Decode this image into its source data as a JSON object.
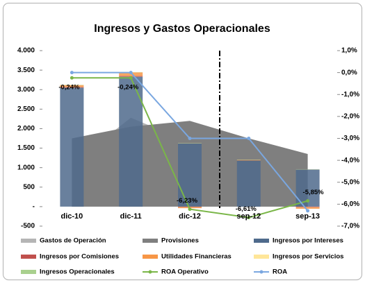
{
  "chart_data": {
    "type": "combo",
    "title": "Ingresos y Gastos Operacionales",
    "categories": [
      "dic-10",
      "dic-11",
      "dic-12",
      "sep-12",
      "sep-13"
    ],
    "ylim": [
      -500,
      4000
    ],
    "yticks": [
      {
        "value": 4000,
        "label": "4.000"
      },
      {
        "value": 3500,
        "label": "3.500"
      },
      {
        "value": 3000,
        "label": "3.000"
      },
      {
        "value": 2500,
        "label": "2.500"
      },
      {
        "value": 2000,
        "label": "2.000"
      },
      {
        "value": 1500,
        "label": "1.500"
      },
      {
        "value": 1000,
        "label": "1.000"
      },
      500,
      {
        "value": 0,
        "label": "-"
      },
      -500
    ],
    "y2lim": [
      -7,
      1
    ],
    "y2ticks": [
      {
        "value": 1,
        "label": "1,0%"
      },
      {
        "value": 0,
        "label": "0,0%"
      },
      {
        "value": -1,
        "label": "-1,0%"
      },
      {
        "value": -2,
        "label": "-2,0%"
      },
      {
        "value": -3,
        "label": "-3,0%"
      },
      {
        "value": -4,
        "label": "-4,0%"
      },
      {
        "value": -5,
        "label": "-5,0%"
      },
      {
        "value": -6,
        "label": "-6,0%"
      },
      {
        "value": -7,
        "label": "-7,0%"
      }
    ],
    "series": [
      {
        "name": "Gastos de Operación",
        "type": "area",
        "color": "#b5b5b5",
        "values": [
          1100,
          2280,
          1650,
          1250,
          850
        ]
      },
      {
        "name": "Provisiones",
        "type": "area",
        "color": "#7f7f7f",
        "values": [
          1750,
          2050,
          2200,
          1750,
          1350
        ]
      },
      {
        "name": "Ingresos por Intereses",
        "type": "bar",
        "color": "#4f6a8c",
        "values": [
          3050,
          3330,
          1620,
          1180,
          950
        ]
      },
      {
        "name": "Ingresos por Comisiones",
        "type": "bar",
        "color": "#c0504d",
        "values": [
          15,
          20,
          -10,
          5,
          -15
        ]
      },
      {
        "name": "Utilidades Financieras",
        "type": "bar",
        "color": "#f79646",
        "values": [
          50,
          90,
          -30,
          10,
          -40
        ]
      },
      {
        "name": "Ingresos por Servicios",
        "type": "bar",
        "color": "#ffe699",
        "values": [
          5,
          5,
          5,
          5,
          5
        ]
      },
      {
        "name": "Ingresos Operacionales",
        "type": "bar",
        "color": "#a9d08e",
        "values": [
          5,
          5,
          5,
          5,
          5
        ]
      },
      {
        "name": "ROA Operativo",
        "type": "line",
        "axis": "y2",
        "color": "#7ab648",
        "values": [
          -0.24,
          -0.24,
          -6.23,
          -6.61,
          -5.85
        ],
        "value_labels": [
          "-0,24%",
          "-0,24%",
          "-6,23%",
          "-6,61%",
          "-5,85%"
        ]
      },
      {
        "name": "ROA",
        "type": "line",
        "axis": "y2",
        "color": "#7aa7e0",
        "values": [
          0.0,
          0.0,
          -3.0,
          -3.0,
          -6.3
        ]
      }
    ]
  }
}
